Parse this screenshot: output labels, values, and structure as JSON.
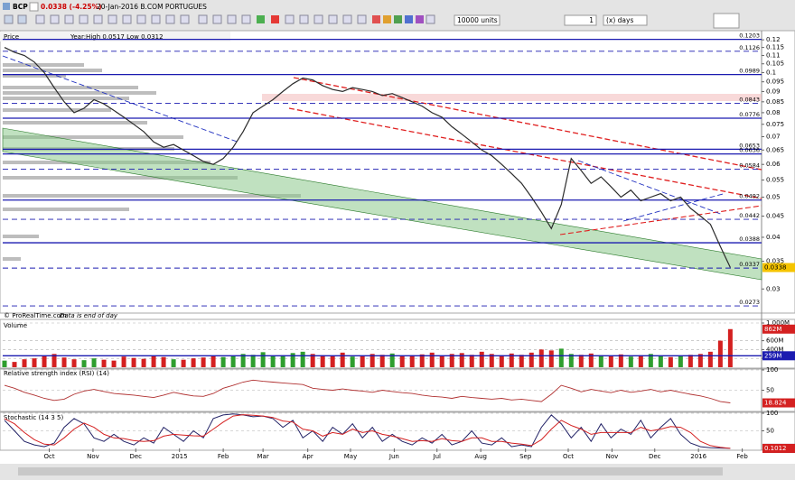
{
  "toolbar": {
    "symbol": "BCP",
    "price": "0.0338 (-4.25%)",
    "info": "20-Jan-2016 B.COM PORTUGUES",
    "units": "10000 units",
    "period_count": "1",
    "period_unit": "(x) days"
  },
  "chart_data": [
    {
      "type": "line",
      "title": "Price",
      "stats": "Year:High 0.0517 Low 0.0312",
      "source": "© ProRealTime.com",
      "note": "Data is end of day",
      "log_scale": true,
      "color": "#2b2b2b",
      "last_color": "#f5c400",
      "xlim": [
        0,
        76.6
      ],
      "ylim": [
        0.0265,
        0.125
      ],
      "yticks": [
        0.12,
        0.115,
        0.11,
        0.105,
        0.1,
        0.095,
        0.09,
        0.085,
        0.08,
        0.075,
        0.07,
        0.065,
        0.06,
        0.055,
        0.05,
        0.045,
        0.04,
        0.035,
        0.03
      ],
      "levels": [
        0.1203,
        0.1126,
        0.0989,
        0.0843,
        0.0776,
        0.0653,
        0.0636,
        0.0584,
        0.0492,
        0.0442,
        0.0388,
        0.0337,
        0.0273
      ],
      "dashed": [
        false,
        true,
        false,
        true,
        false,
        false,
        false,
        true,
        false,
        true,
        false,
        true,
        true
      ],
      "level_color": "#1b1bb0",
      "values": [
        0.115,
        0.112,
        0.11,
        0.106,
        0.1,
        0.092,
        0.085,
        0.08,
        0.082,
        0.086,
        0.084,
        0.081,
        0.078,
        0.075,
        0.072,
        0.068,
        0.066,
        0.067,
        0.065,
        0.063,
        0.061,
        0.06,
        0.062,
        0.066,
        0.072,
        0.08,
        0.083,
        0.086,
        0.09,
        0.094,
        0.097,
        0.096,
        0.093,
        0.091,
        0.09,
        0.092,
        0.091,
        0.09,
        0.088,
        0.089,
        0.087,
        0.085,
        0.083,
        0.08,
        0.078,
        0.074,
        0.071,
        0.068,
        0.065,
        0.063,
        0.06,
        0.057,
        0.054,
        0.05,
        0.046,
        0.042,
        0.048,
        0.062,
        0.058,
        0.054,
        0.056,
        0.053,
        0.05,
        0.052,
        0.049,
        0.05,
        0.051,
        0.049,
        0.05,
        0.047,
        0.045,
        0.043,
        0.038,
        0.0338
      ]
    },
    {
      "type": "bar",
      "title": "Volume",
      "up_color": "#2e9e2e",
      "down_color": "#d42020",
      "average_color": "#1b1bb0",
      "xlim": [
        0,
        76.6
      ],
      "ylim": [
        0,
        1000000000
      ],
      "yticks": [
        {
          "value": 1000000000,
          "label": "1,000M"
        },
        {
          "value": 600000000,
          "label": "600M"
        },
        {
          "value": 400000000,
          "label": "400M"
        },
        {
          "value": 200000000,
          "label": "200M"
        }
      ],
      "average": 259000000,
      "average_label": "259M",
      "last_value_label": "862M",
      "values": [
        150000000,
        120000000,
        180000000,
        200000000,
        260000000,
        300000000,
        220000000,
        180000000,
        160000000,
        200000000,
        170000000,
        150000000,
        240000000,
        210000000,
        190000000,
        260000000,
        230000000,
        180000000,
        170000000,
        200000000,
        220000000,
        250000000,
        230000000,
        260000000,
        300000000,
        280000000,
        340000000,
        260000000,
        270000000,
        320000000,
        350000000,
        300000000,
        270000000,
        250000000,
        330000000,
        240000000,
        260000000,
        300000000,
        280000000,
        310000000,
        250000000,
        270000000,
        290000000,
        330000000,
        260000000,
        300000000,
        320000000,
        280000000,
        350000000,
        300000000,
        270000000,
        310000000,
        280000000,
        330000000,
        400000000,
        380000000,
        420000000,
        300000000,
        280000000,
        310000000,
        270000000,
        260000000,
        290000000,
        240000000,
        270000000,
        300000000,
        250000000,
        230000000,
        260000000,
        280000000,
        300000000,
        350000000,
        600000000,
        862000000
      ]
    },
    {
      "type": "line",
      "title": "Relative strength index (RSI) (14)",
      "color": "#b03030",
      "last_color": "#d42020",
      "xlim": [
        0,
        76.6
      ],
      "ylim": [
        0,
        100
      ],
      "yticks": [
        50,
        100
      ],
      "values": [
        62,
        55,
        45,
        38,
        30,
        25,
        28,
        40,
        48,
        52,
        47,
        42,
        40,
        38,
        35,
        32,
        38,
        45,
        40,
        36,
        35,
        42,
        55,
        62,
        70,
        75,
        72,
        70,
        68,
        66,
        64,
        55,
        52,
        50,
        53,
        50,
        48,
        45,
        50,
        47,
        44,
        42,
        38,
        35,
        33,
        30,
        35,
        32,
        30,
        28,
        30,
        26,
        28,
        25,
        22,
        40,
        62,
        55,
        46,
        52,
        48,
        44,
        50,
        45,
        48,
        52,
        46,
        50,
        45,
        40,
        36,
        30,
        22,
        18.824
      ]
    },
    {
      "type": "line",
      "title": "Stochastic (14 3 5)",
      "xlim": [
        0,
        76.6
      ],
      "ylim": [
        0,
        100
      ],
      "yticks": [
        50,
        100
      ],
      "xticks": [
        {
          "value": 4.5,
          "label": "Oct"
        },
        {
          "value": 8.9,
          "label": "Nov"
        },
        {
          "value": 13.2,
          "label": "Dec"
        },
        {
          "value": 17.6,
          "label": "2015"
        },
        {
          "value": 22,
          "label": "Feb"
        },
        {
          "value": 26,
          "label": "Mar"
        },
        {
          "value": 30.5,
          "label": "Apr"
        },
        {
          "value": 34.8,
          "label": "May"
        },
        {
          "value": 39.2,
          "label": "Jun"
        },
        {
          "value": 43.5,
          "label": "Jul"
        },
        {
          "value": 47.9,
          "label": "Aug"
        },
        {
          "value": 52.4,
          "label": "Sep"
        },
        {
          "value": 56.7,
          "label": "Oct"
        },
        {
          "value": 61.1,
          "label": "Nov"
        },
        {
          "value": 65.4,
          "label": "Dec"
        },
        {
          "value": 69.8,
          "label": "2016"
        },
        {
          "value": 74.2,
          "label": "Feb"
        }
      ],
      "series": [
        {
          "color": "#222266",
          "values": [
            80,
            50,
            20,
            10,
            5,
            15,
            60,
            85,
            70,
            30,
            20,
            40,
            20,
            10,
            30,
            15,
            60,
            40,
            20,
            50,
            30,
            85,
            95,
            98,
            95,
            90,
            92,
            85,
            60,
            80,
            30,
            50,
            20,
            60,
            40,
            70,
            30,
            60,
            20,
            40,
            20,
            10,
            30,
            15,
            40,
            10,
            20,
            50,
            15,
            10,
            30,
            5,
            10,
            5,
            60,
            95,
            70,
            30,
            60,
            20,
            70,
            30,
            55,
            40,
            80,
            30,
            60,
            85,
            40,
            15,
            5,
            2,
            1,
            0.185
          ]
        },
        {
          "color": "#d42020",
          "values": [
            85,
            70,
            45,
            25,
            12,
            10,
            30,
            55,
            72,
            60,
            40,
            30,
            28,
            22,
            20,
            22,
            35,
            40,
            38,
            36,
            35,
            55,
            75,
            92,
            96,
            94,
            92,
            88,
            78,
            75,
            55,
            50,
            35,
            45,
            40,
            55,
            45,
            50,
            40,
            35,
            28,
            20,
            22,
            20,
            28,
            22,
            20,
            30,
            30,
            20,
            20,
            15,
            12,
            8,
            25,
            55,
            80,
            65,
            55,
            40,
            45,
            45,
            45,
            45,
            60,
            50,
            55,
            62,
            60,
            45,
            20,
            8,
            3,
            0.1012
          ]
        }
      ]
    }
  ]
}
